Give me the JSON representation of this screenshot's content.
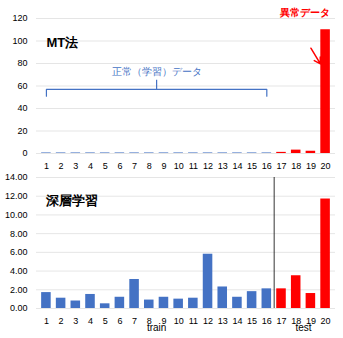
{
  "chart_data": [
    {
      "type": "bar",
      "title": "MT法",
      "categories": [
        1,
        2,
        3,
        4,
        5,
        6,
        7,
        8,
        9,
        10,
        11,
        12,
        13,
        14,
        15,
        16,
        17,
        18,
        19,
        20
      ],
      "values": [
        0.5,
        0.5,
        0.5,
        0.5,
        0.5,
        0.5,
        0.5,
        0.5,
        0.5,
        0.5,
        0.5,
        0.5,
        0.5,
        0.5,
        0.5,
        0.5,
        1.0,
        3.0,
        2.0,
        110.0
      ],
      "colors": [
        "#4472C4",
        "#4472C4",
        "#4472C4",
        "#4472C4",
        "#4472C4",
        "#4472C4",
        "#4472C4",
        "#4472C4",
        "#4472C4",
        "#4472C4",
        "#4472C4",
        "#4472C4",
        "#4472C4",
        "#4472C4",
        "#4472C4",
        "#4472C4",
        "#FF0000",
        "#FF0000",
        "#FF0000",
        "#FF0000"
      ],
      "ylim": [
        0,
        120
      ],
      "yticks": [
        0,
        20,
        40,
        60,
        80,
        100,
        120
      ],
      "grid": true,
      "annotations": [
        {
          "text": "正常（学習）データ",
          "from": 1,
          "to": 16,
          "color": "#4472C4"
        },
        {
          "text": "異常データ",
          "at": 20,
          "color": "#FF0000"
        }
      ]
    },
    {
      "type": "bar",
      "title": "深層学習",
      "categories": [
        1,
        2,
        3,
        4,
        5,
        6,
        7,
        8,
        9,
        10,
        11,
        12,
        13,
        14,
        15,
        16,
        17,
        18,
        19,
        20
      ],
      "values": [
        1.7,
        1.1,
        0.8,
        1.5,
        0.5,
        1.2,
        3.1,
        0.9,
        1.2,
        1.0,
        1.1,
        5.8,
        2.3,
        1.2,
        1.8,
        2.1,
        2.1,
        3.5,
        1.6,
        11.7
      ],
      "colors": [
        "#4472C4",
        "#4472C4",
        "#4472C4",
        "#4472C4",
        "#4472C4",
        "#4472C4",
        "#4472C4",
        "#4472C4",
        "#4472C4",
        "#4472C4",
        "#4472C4",
        "#4472C4",
        "#4472C4",
        "#4472C4",
        "#4472C4",
        "#4472C4",
        "#FF0000",
        "#FF0000",
        "#FF0000",
        "#FF0000"
      ],
      "ylim": [
        0,
        14.0
      ],
      "yticks": [
        {
          "value": 0,
          "label": "0.00"
        },
        {
          "value": 2,
          "label": "2.00"
        },
        {
          "value": 4,
          "label": "4.00"
        },
        {
          "value": 6,
          "label": "6.00"
        },
        {
          "value": 8,
          "label": "8.00"
        },
        {
          "value": 10,
          "label": "10.00"
        },
        {
          "value": 12,
          "label": "12.00"
        },
        {
          "value": 14,
          "label": "14.00"
        }
      ],
      "grid": true,
      "groups": [
        {
          "text": "train",
          "from": 1,
          "to": 16
        },
        {
          "text": "test",
          "from": 17,
          "to": 20
        }
      ]
    }
  ]
}
